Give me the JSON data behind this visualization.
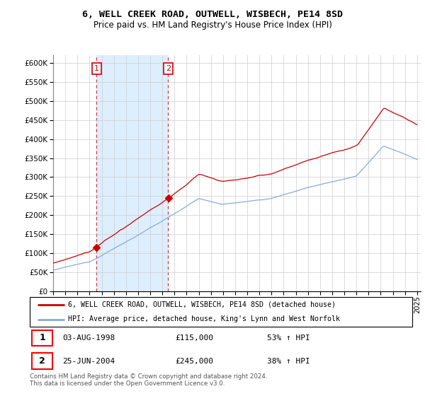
{
  "title": "6, WELL CREEK ROAD, OUTWELL, WISBECH, PE14 8SD",
  "subtitle": "Price paid vs. HM Land Registry's House Price Index (HPI)",
  "legend_line1": "6, WELL CREEK ROAD, OUTWELL, WISBECH, PE14 8SD (detached house)",
  "legend_line2": "HPI: Average price, detached house, King's Lynn and West Norfolk",
  "purchase1_date": "03-AUG-1998",
  "purchase1_price": 115000,
  "purchase1_hpi": "53% ↑ HPI",
  "purchase2_date": "25-JUN-2004",
  "purchase2_price": 245000,
  "purchase2_hpi": "38% ↑ HPI",
  "line_color_red": "#cc0000",
  "line_color_blue": "#88aadd",
  "shade_color": "#ddeeff",
  "purchase1_year": 1998.58,
  "purchase2_year": 2004.48,
  "ylim": [
    0,
    620000
  ],
  "yticks": [
    0,
    50000,
    100000,
    150000,
    200000,
    250000,
    300000,
    350000,
    400000,
    450000,
    500000,
    550000,
    600000
  ],
  "footer": "Contains HM Land Registry data © Crown copyright and database right 2024.\nThis data is licensed under the Open Government Licence v3.0.",
  "background_color": "#ffffff",
  "grid_color": "#cccccc"
}
